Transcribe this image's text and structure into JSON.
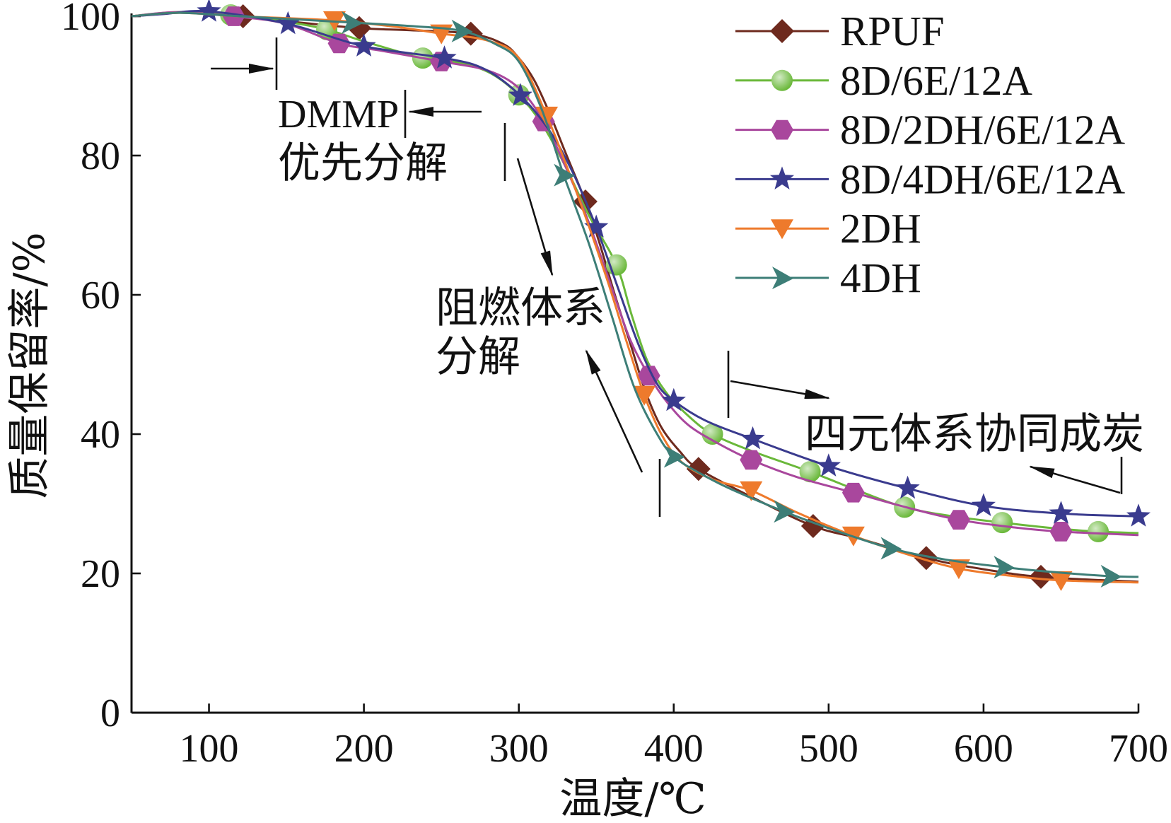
{
  "chart_data": {
    "type": "line",
    "title": "",
    "xlabel": "温度/℃",
    "ylabel": "质量保留率/%",
    "xlim": [
      50,
      700
    ],
    "ylim": [
      0,
      100
    ],
    "xticks": [
      100,
      200,
      300,
      400,
      500,
      600,
      700
    ],
    "yticks": [
      0,
      20,
      40,
      60,
      80,
      100
    ],
    "grid": false,
    "legend": "top-right",
    "annotations": [
      "DMMP",
      "优先分解",
      "阻燃体系",
      "分解",
      "四元体系协同成炭"
    ],
    "series": [
      {
        "name": "RPUF",
        "color": "#6e2a1e",
        "marker": "diamond",
        "x": [
          50,
          80,
          100,
          122,
          150,
          197,
          230,
          269,
          290,
          300,
          310,
          320,
          330,
          343,
          352,
          362,
          372,
          382,
          392,
          404,
          416,
          450,
          490,
          520,
          563,
          600,
          637,
          700
        ],
        "y": [
          100,
          100.5,
          100.4,
          100,
          99.3,
          98.3,
          98,
          97.5,
          96,
          94,
          90.8,
          86,
          80.5,
          73.4,
          67.5,
          60,
          53,
          46,
          41,
          37.5,
          35,
          31,
          26.8,
          25,
          22.2,
          20.6,
          19.5,
          18.8
        ],
        "markers": [
          [
            122,
            100
          ],
          [
            197,
            98.3
          ],
          [
            269,
            97.5
          ],
          [
            343,
            73.4
          ],
          [
            416,
            35
          ],
          [
            490,
            26.8
          ],
          [
            563,
            22.2
          ],
          [
            637,
            19.5
          ]
        ]
      },
      {
        "name": "8D/6E/12A",
        "color": "#6ab83a",
        "marker": "circle",
        "x": [
          50,
          80,
          114,
          150,
          176,
          200,
          238,
          262,
          282,
          300,
          315,
          330,
          345,
          363,
          373,
          383,
          395,
          410,
          425,
          450,
          488,
          520,
          549,
          580,
          612,
          645,
          674,
          700
        ],
        "y": [
          100,
          100.6,
          100.2,
          99.2,
          98.1,
          96.4,
          94,
          93.3,
          91.8,
          88.7,
          84.5,
          78.5,
          71.5,
          64.3,
          57,
          50.5,
          46,
          42.5,
          40,
          37.6,
          34.6,
          31.8,
          29.5,
          28.2,
          27.3,
          26.5,
          26,
          25.8
        ],
        "markers": [
          [
            114,
            100.2
          ],
          [
            176,
            98.1
          ],
          [
            238,
            94
          ],
          [
            300,
            88.7
          ],
          [
            363,
            64.3
          ],
          [
            425,
            40
          ],
          [
            488,
            34.6
          ],
          [
            549,
            29.5
          ],
          [
            612,
            27.3
          ],
          [
            674,
            26
          ]
        ]
      },
      {
        "name": "8D/2DH/6E/12A",
        "color": "#a9479d",
        "marker": "hexagon",
        "x": [
          50,
          80,
          116,
          150,
          184,
          210,
          250,
          280,
          300,
          316,
          330,
          345,
          360,
          372,
          384,
          396,
          410,
          430,
          450,
          480,
          516,
          550,
          584,
          620,
          650,
          700
        ],
        "y": [
          100,
          100.6,
          100,
          98.9,
          96.1,
          95.1,
          93.5,
          92.2,
          89.7,
          84.9,
          78.5,
          70.5,
          61,
          53.5,
          48.4,
          44.5,
          41.2,
          38.5,
          36.3,
          33.8,
          31.6,
          29.5,
          27.7,
          26.6,
          26,
          25.5
        ],
        "markers": [
          [
            116,
            100
          ],
          [
            184,
            96.1
          ],
          [
            250,
            93.5
          ],
          [
            316,
            84.9
          ],
          [
            384,
            48.4
          ],
          [
            450,
            36.3
          ],
          [
            516,
            31.6
          ],
          [
            584,
            27.7
          ],
          [
            650,
            26
          ]
        ]
      },
      {
        "name": "8D/4DH/6E/12A",
        "color": "#3a3b8e",
        "marker": "star",
        "x": [
          50,
          70,
          100,
          151,
          200,
          252,
          278,
          301,
          320,
          335,
          350,
          364,
          377,
          389,
          400,
          420,
          451,
          500,
          551,
          600,
          650,
          700
        ],
        "y": [
          100,
          100.3,
          100.7,
          98.9,
          95.7,
          94,
          92.4,
          88.6,
          83.5,
          77.5,
          69.7,
          61,
          53,
          47.3,
          44.8,
          42,
          39.3,
          35.4,
          32.2,
          29.7,
          28.6,
          28.2
        ],
        "markers": [
          [
            100,
            100.7
          ],
          [
            151,
            98.9
          ],
          [
            200,
            95.7
          ],
          [
            252,
            94
          ],
          [
            301,
            88.6
          ],
          [
            350,
            69.7
          ],
          [
            400,
            44.8
          ],
          [
            451,
            39.3
          ],
          [
            500,
            35.4
          ],
          [
            551,
            32.2
          ],
          [
            600,
            29.7
          ],
          [
            650,
            28.6
          ],
          [
            700,
            28.2
          ]
        ]
      },
      {
        "name": "2DH",
        "color": "#ee7a2c",
        "marker": "triangle-down",
        "x": [
          50,
          80,
          120,
          181,
          220,
          250,
          280,
          300,
          318,
          330,
          345,
          358,
          370,
          381,
          392,
          405,
          425,
          450,
          480,
          516,
          550,
          584,
          620,
          650,
          700
        ],
        "y": [
          100,
          100.5,
          100,
          99.4,
          98.5,
          97.5,
          96.5,
          94,
          85.7,
          79,
          70,
          61.5,
          53,
          45.6,
          40,
          36,
          33.5,
          31.9,
          28.7,
          25.4,
          22.8,
          20.7,
          19.6,
          19,
          18.7
        ],
        "markers": [
          [
            181,
            99.4
          ],
          [
            250,
            97.5
          ],
          [
            318,
            85.7
          ],
          [
            381,
            45.6
          ],
          [
            450,
            31.9
          ],
          [
            516,
            25.4
          ],
          [
            584,
            20.7
          ],
          [
            650,
            19
          ]
        ]
      },
      {
        "name": "4DH",
        "color": "#3d7e77",
        "marker": "triangle-right",
        "x": [
          50,
          80,
          120,
          192,
          230,
          263,
          285,
          300,
          315,
          329,
          345,
          360,
          374,
          388,
          400,
          420,
          440,
          471,
          500,
          540,
          575,
          613,
          650,
          682,
          700
        ],
        "y": [
          100,
          100.5,
          100,
          99.1,
          98.6,
          97.9,
          96,
          93.5,
          86.5,
          77.2,
          67.5,
          57,
          47,
          40.5,
          36.8,
          34,
          31.8,
          28.9,
          26.5,
          23.6,
          22,
          20.9,
          20.1,
          19.6,
          19.5
        ],
        "markers": [
          [
            192,
            99.1
          ],
          [
            263,
            97.9
          ],
          [
            329,
            77.2
          ],
          [
            400,
            36.8
          ],
          [
            471,
            28.9
          ],
          [
            540,
            23.6
          ],
          [
            613,
            20.9
          ],
          [
            682,
            19.6
          ]
        ]
      }
    ]
  }
}
